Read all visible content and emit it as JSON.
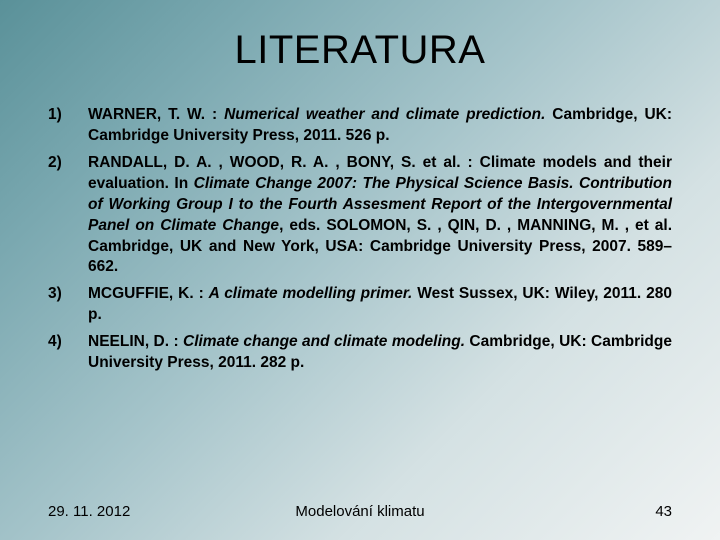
{
  "title": "LITERATURA",
  "references": [
    {
      "author": "WARNER, T. W. : ",
      "title": "Numerical weather and climate prediction.",
      "rest": " Cambridge, UK: Cambridge University Press, 2011. 526 p."
    },
    {
      "author": "RANDALL, D. A. , WOOD, R. A. , BONY, S. et al. : Climate models and their evaluation. In ",
      "title": "Climate Change 2007: The Physical Science Basis. Contribution of Working Group I to the Fourth Assesment Report of the Intergovernmental Panel on Climate Change",
      "rest": ", eds. SOLOMON, S. , QIN, D. , MANNING, M. , et al. Cambridge, UK and New York, USA: Cambridge University Press, 2007. 589– 662."
    },
    {
      "author": "MCGUFFIE, K. : ",
      "title": "A climate modelling primer.",
      "rest": " West Sussex, UK: Wiley, 2011. 280 p."
    },
    {
      "author": "NEELIN, D. : ",
      "title": "Climate change and climate modeling.",
      "rest": " Cambridge, UK: Cambridge University Press, 2011. 282 p."
    }
  ],
  "footer": {
    "date": "29. 11. 2012",
    "center": "Modelování klimatu",
    "page": "43"
  }
}
